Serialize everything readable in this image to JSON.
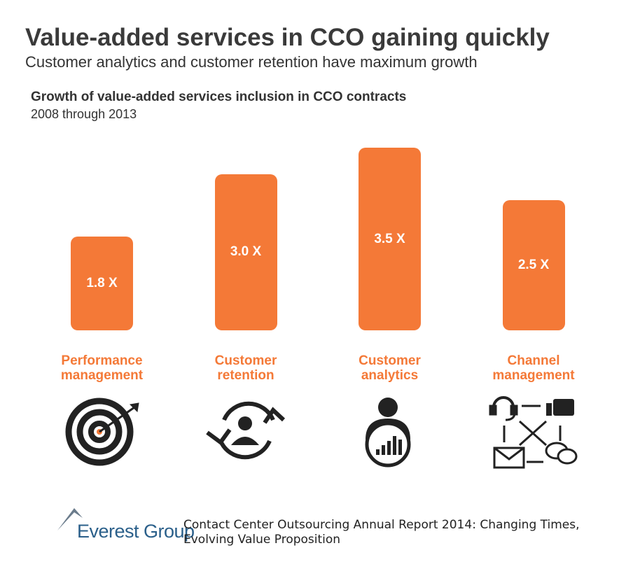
{
  "chart_data": {
    "type": "bar",
    "title": "Value-added services in CCO gaining quickly",
    "subtitle": "Customer analytics and customer retention have maximum growth",
    "chart_title": "Growth of value-added services inclusion in CCO contracts",
    "chart_subtitle": "2008 through 2013",
    "categories": [
      "Performance management",
      "Customer retention",
      "Customer analytics",
      "Channel management"
    ],
    "values": [
      1.8,
      3.0,
      3.5,
      2.5
    ],
    "value_labels": [
      "1.8 X",
      "3.0 X",
      "3.5 X",
      "2.5 X"
    ],
    "color": "#f47937"
  },
  "footer": {
    "brand": "Everest Group",
    "citation": "Contact Center Outsourcing Annual Report 2014: Changing Times, Evolving Value Proposition"
  }
}
